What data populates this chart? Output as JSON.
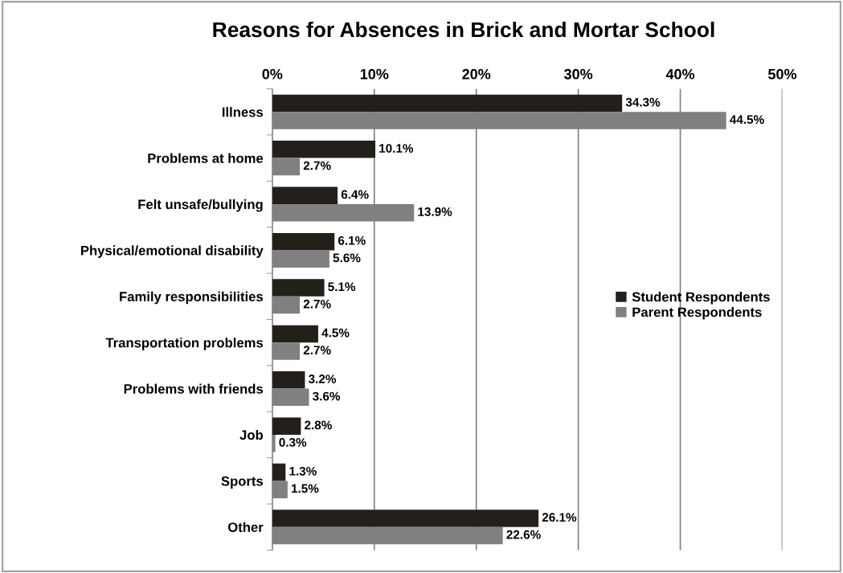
{
  "chart_data": {
    "type": "bar",
    "orientation": "horizontal",
    "title": "Reasons for Absences in Brick and Mortar School",
    "categories": [
      "Illness",
      "Problems at home",
      "Felt unsafe/bullying",
      "Physical/emotional disability",
      "Family responsibilities",
      "Transportation problems",
      "Problems with friends",
      "Job",
      "Sports",
      "Other"
    ],
    "series": [
      {
        "name": "Student Respondents",
        "color": "#231f1a",
        "values": [
          34.3,
          10.1,
          6.4,
          6.1,
          5.1,
          4.5,
          3.2,
          2.8,
          1.3,
          26.1
        ],
        "value_labels": [
          "34.3%",
          "10.1%",
          "6.4%",
          "6.1%",
          "5.1%",
          "4.5%",
          "3.2%",
          "2.8%",
          "1.3%",
          "26.1%"
        ]
      },
      {
        "name": "Parent Respondents",
        "color": "#808080",
        "values": [
          44.5,
          2.7,
          13.9,
          5.6,
          2.7,
          2.7,
          3.6,
          0.3,
          1.5,
          22.6
        ],
        "value_labels": [
          "44.5%",
          "2.7%",
          "13.9%",
          "5.6%",
          "2.7%",
          "2.7%",
          "3.6%",
          "0.3%",
          "1.5%",
          "22.6%"
        ]
      }
    ],
    "xlim": [
      0,
      50
    ],
    "xticks": [
      {
        "value": 0,
        "label": "0%"
      },
      {
        "value": 10,
        "label": "10%"
      },
      {
        "value": 20,
        "label": "20%"
      },
      {
        "value": 30,
        "label": "30%"
      },
      {
        "value": 40,
        "label": "40%"
      },
      {
        "value": 50,
        "label": "50%"
      }
    ],
    "grid": "x",
    "legend": "right"
  }
}
